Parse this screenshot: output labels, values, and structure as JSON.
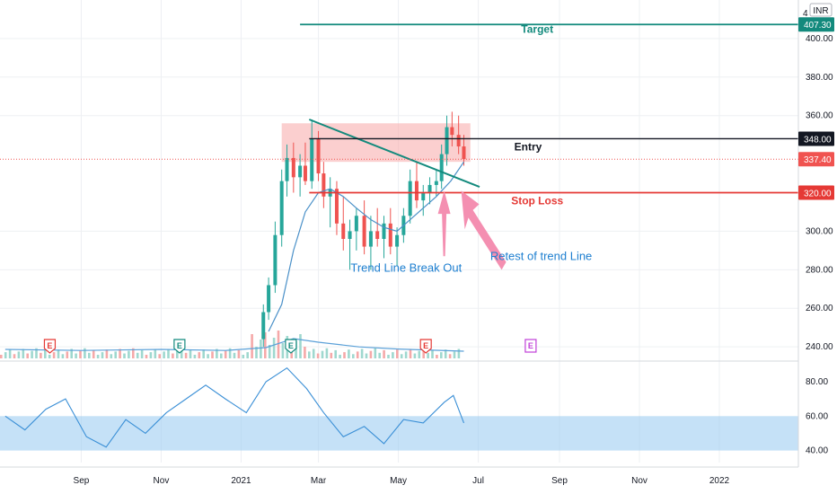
{
  "chart_data": {
    "type": "candlestick",
    "currency_label": "INR",
    "x_ticks": [
      "Sep",
      "Nov",
      "2021",
      "Mar",
      "May",
      "Jul",
      "Sep",
      "Nov",
      "2022"
    ],
    "price_axis": {
      "ticks": [
        "400.00",
        "380.00",
        "360.00",
        "300.00",
        "280.00",
        "260.00",
        "240.00"
      ],
      "partial_top_tick": "4",
      "range": [
        234,
        420
      ]
    },
    "levels": [
      {
        "name": "Target",
        "price": 407.3,
        "label": "407.30",
        "color": "#138a7d"
      },
      {
        "name": "Entry",
        "price": 348.0,
        "label": "348.00",
        "color": "#131722"
      },
      {
        "name": "Stop Loss",
        "price": 320.0,
        "label": "320.00",
        "color": "#e53935"
      }
    ],
    "last_price": {
      "price": 337.4,
      "label": "337.40",
      "color": "#f05350"
    },
    "resistance_zone": {
      "from": 336,
      "to": 356
    },
    "trend_line": {
      "start": {
        "x": "2021-02-22",
        "y": 358
      },
      "end": {
        "x": "2021-07-02",
        "y": 323
      },
      "color": "#138a7d"
    },
    "annotations": [
      {
        "text": "Trend Line Break Out",
        "color": "#1e7fd0"
      },
      {
        "text": "Retest of trend Line",
        "color": "#1e7fd0"
      }
    ],
    "earnings_markers": [
      {
        "x": "2020-08-08",
        "label": "E",
        "color": "#e53935"
      },
      {
        "x": "2020-11-15",
        "label": "E",
        "color": "#138a7d"
      },
      {
        "x": "2021-02-08",
        "label": "E",
        "color": "#138a7d"
      },
      {
        "x": "2021-05-22",
        "label": "E",
        "color": "#e53935"
      },
      {
        "x": "2021-08-10",
        "label": "E",
        "color": "#c040d8"
      }
    ],
    "candles": [
      {
        "x": "2021-01-18",
        "o": 244,
        "h": 262,
        "l": 240,
        "c": 258
      },
      {
        "x": "2021-01-22",
        "o": 258,
        "h": 276,
        "l": 254,
        "c": 272
      },
      {
        "x": "2021-01-27",
        "o": 272,
        "h": 305,
        "l": 268,
        "c": 298
      },
      {
        "x": "2021-02-01",
        "o": 298,
        "h": 332,
        "l": 292,
        "c": 326
      },
      {
        "x": "2021-02-05",
        "o": 326,
        "h": 345,
        "l": 318,
        "c": 338
      },
      {
        "x": "2021-02-10",
        "o": 338,
        "h": 346,
        "l": 320,
        "c": 328
      },
      {
        "x": "2021-02-15",
        "o": 328,
        "h": 340,
        "l": 318,
        "c": 334
      },
      {
        "x": "2021-02-19",
        "o": 334,
        "h": 346,
        "l": 324,
        "c": 326
      },
      {
        "x": "2021-02-24",
        "o": 326,
        "h": 358,
        "l": 322,
        "c": 348
      },
      {
        "x": "2021-03-01",
        "o": 348,
        "h": 352,
        "l": 326,
        "c": 330
      },
      {
        "x": "2021-03-05",
        "o": 330,
        "h": 336,
        "l": 312,
        "c": 318
      },
      {
        "x": "2021-03-10",
        "o": 318,
        "h": 328,
        "l": 302,
        "c": 322
      },
      {
        "x": "2021-03-15",
        "o": 322,
        "h": 326,
        "l": 298,
        "c": 304
      },
      {
        "x": "2021-03-20",
        "o": 304,
        "h": 318,
        "l": 290,
        "c": 296
      },
      {
        "x": "2021-03-25",
        "o": 296,
        "h": 306,
        "l": 280,
        "c": 300
      },
      {
        "x": "2021-03-30",
        "o": 300,
        "h": 312,
        "l": 290,
        "c": 308
      },
      {
        "x": "2021-04-05",
        "o": 308,
        "h": 316,
        "l": 288,
        "c": 292
      },
      {
        "x": "2021-04-10",
        "o": 292,
        "h": 308,
        "l": 280,
        "c": 300
      },
      {
        "x": "2021-04-15",
        "o": 300,
        "h": 312,
        "l": 292,
        "c": 296
      },
      {
        "x": "2021-04-20",
        "o": 296,
        "h": 308,
        "l": 286,
        "c": 304
      },
      {
        "x": "2021-04-25",
        "o": 304,
        "h": 312,
        "l": 288,
        "c": 292
      },
      {
        "x": "2021-04-30",
        "o": 292,
        "h": 302,
        "l": 282,
        "c": 298
      },
      {
        "x": "2021-05-05",
        "o": 298,
        "h": 312,
        "l": 294,
        "c": 308
      },
      {
        "x": "2021-05-10",
        "o": 308,
        "h": 332,
        "l": 304,
        "c": 326
      },
      {
        "x": "2021-05-15",
        "o": 326,
        "h": 336,
        "l": 312,
        "c": 316
      },
      {
        "x": "2021-05-20",
        "o": 316,
        "h": 324,
        "l": 308,
        "c": 320
      },
      {
        "x": "2021-05-25",
        "o": 320,
        "h": 328,
        "l": 314,
        "c": 324
      },
      {
        "x": "2021-05-30",
        "o": 324,
        "h": 332,
        "l": 318,
        "c": 326
      },
      {
        "x": "2021-06-03",
        "o": 326,
        "h": 345,
        "l": 322,
        "c": 340
      },
      {
        "x": "2021-06-07",
        "o": 340,
        "h": 360,
        "l": 334,
        "c": 354
      },
      {
        "x": "2021-06-11",
        "o": 354,
        "h": 362,
        "l": 344,
        "c": 350
      },
      {
        "x": "2021-06-16",
        "o": 350,
        "h": 360,
        "l": 340,
        "c": 344
      },
      {
        "x": "2021-06-20",
        "o": 344,
        "h": 350,
        "l": 334,
        "c": 337.4
      }
    ],
    "moving_average": [
      {
        "x": "2021-01-22",
        "y": 248
      },
      {
        "x": "2021-02-01",
        "y": 262
      },
      {
        "x": "2021-02-10",
        "y": 290
      },
      {
        "x": "2021-02-19",
        "y": 310
      },
      {
        "x": "2021-03-01",
        "y": 320
      },
      {
        "x": "2021-03-10",
        "y": 322
      },
      {
        "x": "2021-03-20",
        "y": 318
      },
      {
        "x": "2021-03-30",
        "y": 312
      },
      {
        "x": "2021-04-10",
        "y": 306
      },
      {
        "x": "2021-04-20",
        "y": 302
      },
      {
        "x": "2021-04-30",
        "y": 300
      },
      {
        "x": "2021-05-10",
        "y": 306
      },
      {
        "x": "2021-05-20",
        "y": 312
      },
      {
        "x": "2021-05-30",
        "y": 318
      },
      {
        "x": "2021-06-10",
        "y": 326
      },
      {
        "x": "2021-06-20",
        "y": 336
      }
    ],
    "volume_ma": [
      {
        "x": "2020-07-05",
        "y": 0.25
      },
      {
        "x": "2020-09-01",
        "y": 0.22
      },
      {
        "x": "2020-11-01",
        "y": 0.25
      },
      {
        "x": "2020-12-20",
        "y": 0.22
      },
      {
        "x": "2021-01-20",
        "y": 0.3
      },
      {
        "x": "2021-02-10",
        "y": 0.55
      },
      {
        "x": "2021-03-01",
        "y": 0.45
      },
      {
        "x": "2021-04-01",
        "y": 0.32
      },
      {
        "x": "2021-05-01",
        "y": 0.26
      },
      {
        "x": "2021-06-20",
        "y": 0.2
      }
    ],
    "rsi": {
      "ticks": [
        "80.00",
        "60.00",
        "40.00"
      ],
      "range": [
        33,
        92
      ],
      "band": [
        40,
        60
      ],
      "values": [
        {
          "x": "2020-07-05",
          "y": 60
        },
        {
          "x": "2020-07-20",
          "y": 52
        },
        {
          "x": "2020-08-05",
          "y": 64
        },
        {
          "x": "2020-08-20",
          "y": 70
        },
        {
          "x": "2020-09-05",
          "y": 48
        },
        {
          "x": "2020-09-20",
          "y": 42
        },
        {
          "x": "2020-10-05",
          "y": 58
        },
        {
          "x": "2020-10-20",
          "y": 50
        },
        {
          "x": "2020-11-05",
          "y": 62
        },
        {
          "x": "2020-11-20",
          "y": 70
        },
        {
          "x": "2020-12-05",
          "y": 78
        },
        {
          "x": "2020-12-20",
          "y": 70
        },
        {
          "x": "2021-01-05",
          "y": 62
        },
        {
          "x": "2021-01-20",
          "y": 80
        },
        {
          "x": "2021-02-05",
          "y": 88
        },
        {
          "x": "2021-02-20",
          "y": 76
        },
        {
          "x": "2021-03-05",
          "y": 62
        },
        {
          "x": "2021-03-20",
          "y": 48
        },
        {
          "x": "2021-04-05",
          "y": 54
        },
        {
          "x": "2021-04-20",
          "y": 44
        },
        {
          "x": "2021-05-05",
          "y": 58
        },
        {
          "x": "2021-05-20",
          "y": 56
        },
        {
          "x": "2021-06-05",
          "y": 68
        },
        {
          "x": "2021-06-12",
          "y": 72
        },
        {
          "x": "2021-06-20",
          "y": 56
        }
      ]
    }
  }
}
